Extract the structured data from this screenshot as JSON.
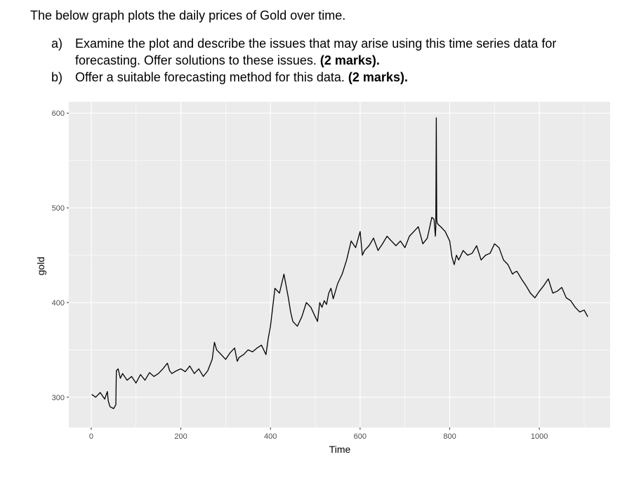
{
  "intro": "The below graph plots the daily prices of Gold over time.",
  "questions": [
    {
      "label": "a)",
      "text": "Examine the plot and describe the issues that may arise using this time series data for forecasting. Offer solutions to these issues.",
      "marks": "(2 marks)."
    },
    {
      "label": "b)",
      "text": "Offer a suitable forecasting method for this data.",
      "marks": "(2 marks)."
    }
  ],
  "chart_data": {
    "type": "line",
    "title": "",
    "xlabel": "Time",
    "ylabel": "gold",
    "xlim": [
      -50,
      1158
    ],
    "ylim": [
      268,
      612
    ],
    "xticks": [
      0,
      200,
      400,
      600,
      800,
      1000
    ],
    "yticks": [
      300,
      400,
      500,
      600
    ],
    "grid": true,
    "series": [
      {
        "x": [
          1,
          10,
          20,
          30,
          36,
          38,
          42,
          50,
          55,
          56,
          60,
          65,
          70,
          80,
          90,
          100,
          110,
          120,
          130,
          140,
          150,
          160,
          170,
          175,
          180,
          190,
          200,
          210,
          220,
          230,
          240,
          250,
          260,
          270,
          275,
          280,
          290,
          300,
          310,
          320,
          325,
          326,
          330,
          340,
          350,
          360,
          370,
          380,
          390,
          395,
          400,
          405,
          410,
          420,
          430,
          440,
          445,
          450,
          460,
          470,
          480,
          490,
          500,
          505,
          510,
          515,
          520,
          525,
          530,
          535,
          540,
          550,
          560,
          570,
          580,
          590,
          600,
          605,
          610,
          620,
          630,
          640,
          650,
          660,
          670,
          680,
          690,
          700,
          710,
          720,
          730,
          740,
          750,
          760,
          765,
          768,
          769,
          770,
          771,
          772,
          775,
          780,
          790,
          800,
          805,
          810,
          815,
          820,
          830,
          840,
          850,
          860,
          870,
          880,
          890,
          900,
          910,
          920,
          930,
          940,
          945,
          950,
          960,
          970,
          980,
          990,
          1000,
          1010,
          1020,
          1030,
          1040,
          1050,
          1060,
          1070,
          1080,
          1090,
          1100,
          1108
        ],
        "y": [
          303,
          300,
          305,
          298,
          306,
          296,
          290,
          288,
          292,
          328,
          330,
          320,
          325,
          318,
          322,
          315,
          324,
          318,
          326,
          322,
          325,
          330,
          336,
          328,
          325,
          328,
          330,
          327,
          333,
          325,
          330,
          322,
          328,
          340,
          358,
          350,
          345,
          340,
          347,
          352,
          340,
          338,
          342,
          345,
          350,
          348,
          352,
          355,
          345,
          362,
          375,
          395,
          415,
          410,
          430,
          405,
          390,
          380,
          375,
          385,
          400,
          395,
          385,
          380,
          400,
          395,
          402,
          398,
          410,
          415,
          404,
          420,
          430,
          445,
          465,
          458,
          475,
          450,
          455,
          460,
          468,
          455,
          462,
          470,
          465,
          460,
          465,
          458,
          470,
          475,
          480,
          462,
          468,
          490,
          488,
          470,
          480,
          595,
          488,
          484,
          482,
          480,
          475,
          465,
          448,
          440,
          450,
          445,
          455,
          450,
          452,
          460,
          445,
          450,
          452,
          462,
          458,
          445,
          440,
          430,
          432,
          433,
          425,
          418,
          410,
          405,
          412,
          418,
          425,
          410,
          412,
          416,
          405,
          402,
          395,
          390,
          392,
          385
        ]
      }
    ]
  }
}
